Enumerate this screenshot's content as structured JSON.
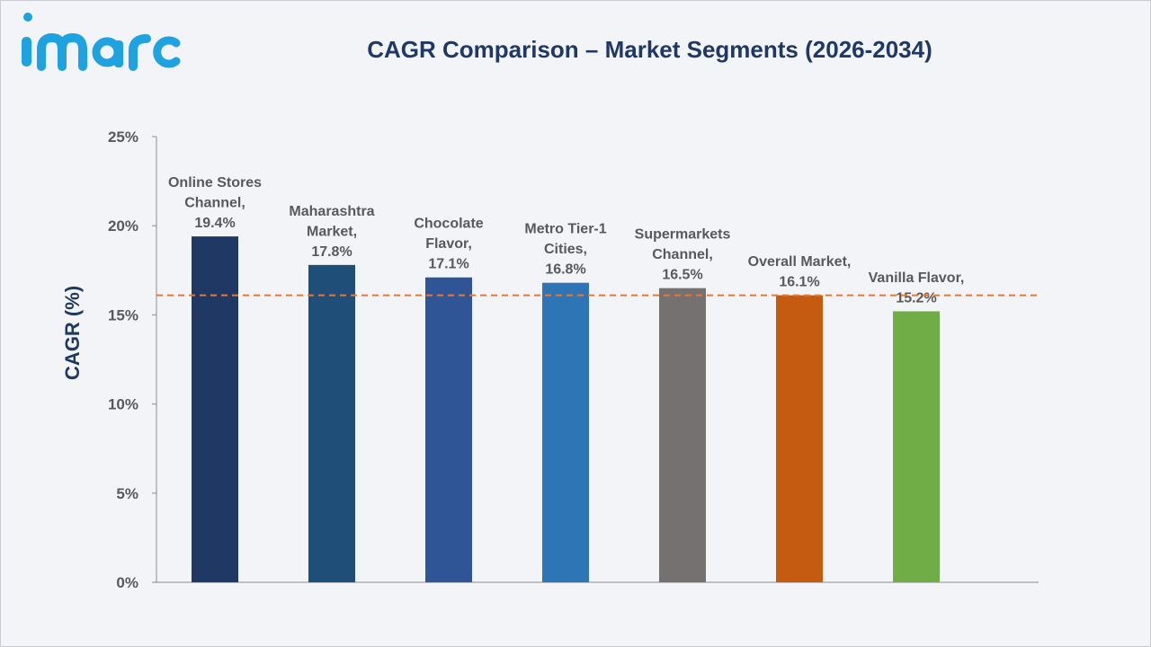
{
  "brand": {
    "logo_text": "imarc",
    "logo_color": "#1fa2e0"
  },
  "chart_data": {
    "type": "bar",
    "title": "CAGR Comparison – Market Segments (2026-2034)",
    "ylabel": "CAGR (%)",
    "xlabel": "",
    "ylim": [
      0,
      25
    ],
    "yticks": [
      "0%",
      "5%",
      "10%",
      "15%",
      "20%",
      "25%"
    ],
    "ytick_values": [
      0,
      5,
      10,
      15,
      20,
      25
    ],
    "grid": false,
    "legend": "none",
    "reference_line": {
      "value": 16.1,
      "style": "dashed",
      "color": "#e07b39"
    },
    "categories": [
      {
        "label_lines": [
          "Online Stores",
          "Channel,",
          "19.4%"
        ],
        "value": 19.4,
        "color": "#1f3864"
      },
      {
        "label_lines": [
          "Maharashtra",
          "Market,",
          "17.8%"
        ],
        "value": 17.8,
        "color": "#1f4e79"
      },
      {
        "label_lines": [
          "Chocolate",
          "Flavor,",
          "17.1%"
        ],
        "value": 17.1,
        "color": "#2f5597"
      },
      {
        "label_lines": [
          "Metro Tier-1",
          "Cities,",
          "16.8%"
        ],
        "value": 16.8,
        "color": "#2e75b6"
      },
      {
        "label_lines": [
          "Supermarkets",
          "Channel,",
          "16.5%"
        ],
        "value": 16.5,
        "color": "#767171"
      },
      {
        "label_lines": [
          "Overall Market,",
          "16.1%"
        ],
        "value": 16.1,
        "color": "#c55a11"
      },
      {
        "label_lines": [
          "Vanilla Flavor,",
          "15.2%"
        ],
        "value": 15.2,
        "color": "#70ad47"
      }
    ]
  }
}
